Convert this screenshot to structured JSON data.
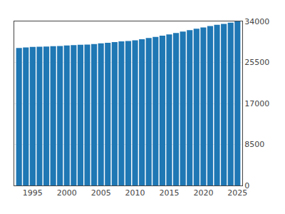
{
  "chart_data": {
    "type": "bar",
    "x": [
      1993,
      1994,
      1995,
      1996,
      1997,
      1998,
      1999,
      2000,
      2001,
      2002,
      2003,
      2004,
      2005,
      2006,
      2007,
      2008,
      2009,
      2010,
      2011,
      2012,
      2013,
      2014,
      2015,
      2016,
      2017,
      2018,
      2019,
      2020,
      2021,
      2022,
      2023,
      2024,
      2025
    ],
    "values": [
      28500,
      28600,
      28700,
      28750,
      28800,
      28850,
      28900,
      29000,
      29100,
      29150,
      29200,
      29300,
      29450,
      29550,
      29700,
      29850,
      29950,
      30100,
      30300,
      30550,
      30800,
      31050,
      31300,
      31600,
      31900,
      32200,
      32500,
      32750,
      33050,
      33300,
      33500,
      33750,
      34000
    ],
    "xlim": [
      1992.3,
      2025.7
    ],
    "xticks": [
      1995,
      2000,
      2005,
      2010,
      2015,
      2020,
      2025
    ],
    "ylim": [
      0,
      34000
    ],
    "yticks": [
      0,
      8500,
      17000,
      25500,
      34000
    ],
    "grid": true
  }
}
